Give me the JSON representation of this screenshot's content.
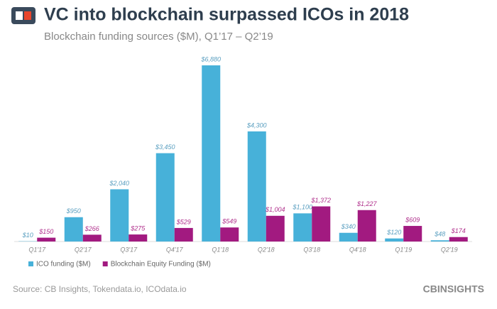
{
  "chart_data": {
    "type": "bar",
    "title": "VC into blockchain surpassed ICOs in 2018",
    "subtitle": "Blockchain funding sources ($M), Q1’17 – Q2’19",
    "categories": [
      "Q1'17",
      "Q2'17",
      "Q3'17",
      "Q4'17",
      "Q1'18",
      "Q2'18",
      "Q3'18",
      "Q4'18",
      "Q1'19",
      "Q2'19"
    ],
    "series": [
      {
        "name": "ICO funding ($M)",
        "color": "#47b1d9",
        "values": [
          10,
          950,
          2040,
          3450,
          6880,
          4300,
          1100,
          340,
          120,
          48
        ],
        "value_labels": [
          "$10",
          "$950",
          "$2,040",
          "$3,450",
          "$6,880",
          "$4,300",
          "$1,100",
          "$340",
          "$120",
          "$48"
        ]
      },
      {
        "name": "Blockchain Equity Funding ($M)",
        "color": "#a21a80",
        "values": [
          150,
          266,
          275,
          529,
          549,
          1004,
          1372,
          1227,
          609,
          174
        ],
        "value_labels": [
          "$150",
          "$266",
          "$275",
          "$529",
          "$549",
          "$1,004",
          "$1,372",
          "$1,227",
          "$609",
          "$174"
        ]
      }
    ],
    "source": "Source: CB Insights, Tokendata.io, ICOdata.io",
    "brand": "CBINSIGHTS"
  }
}
